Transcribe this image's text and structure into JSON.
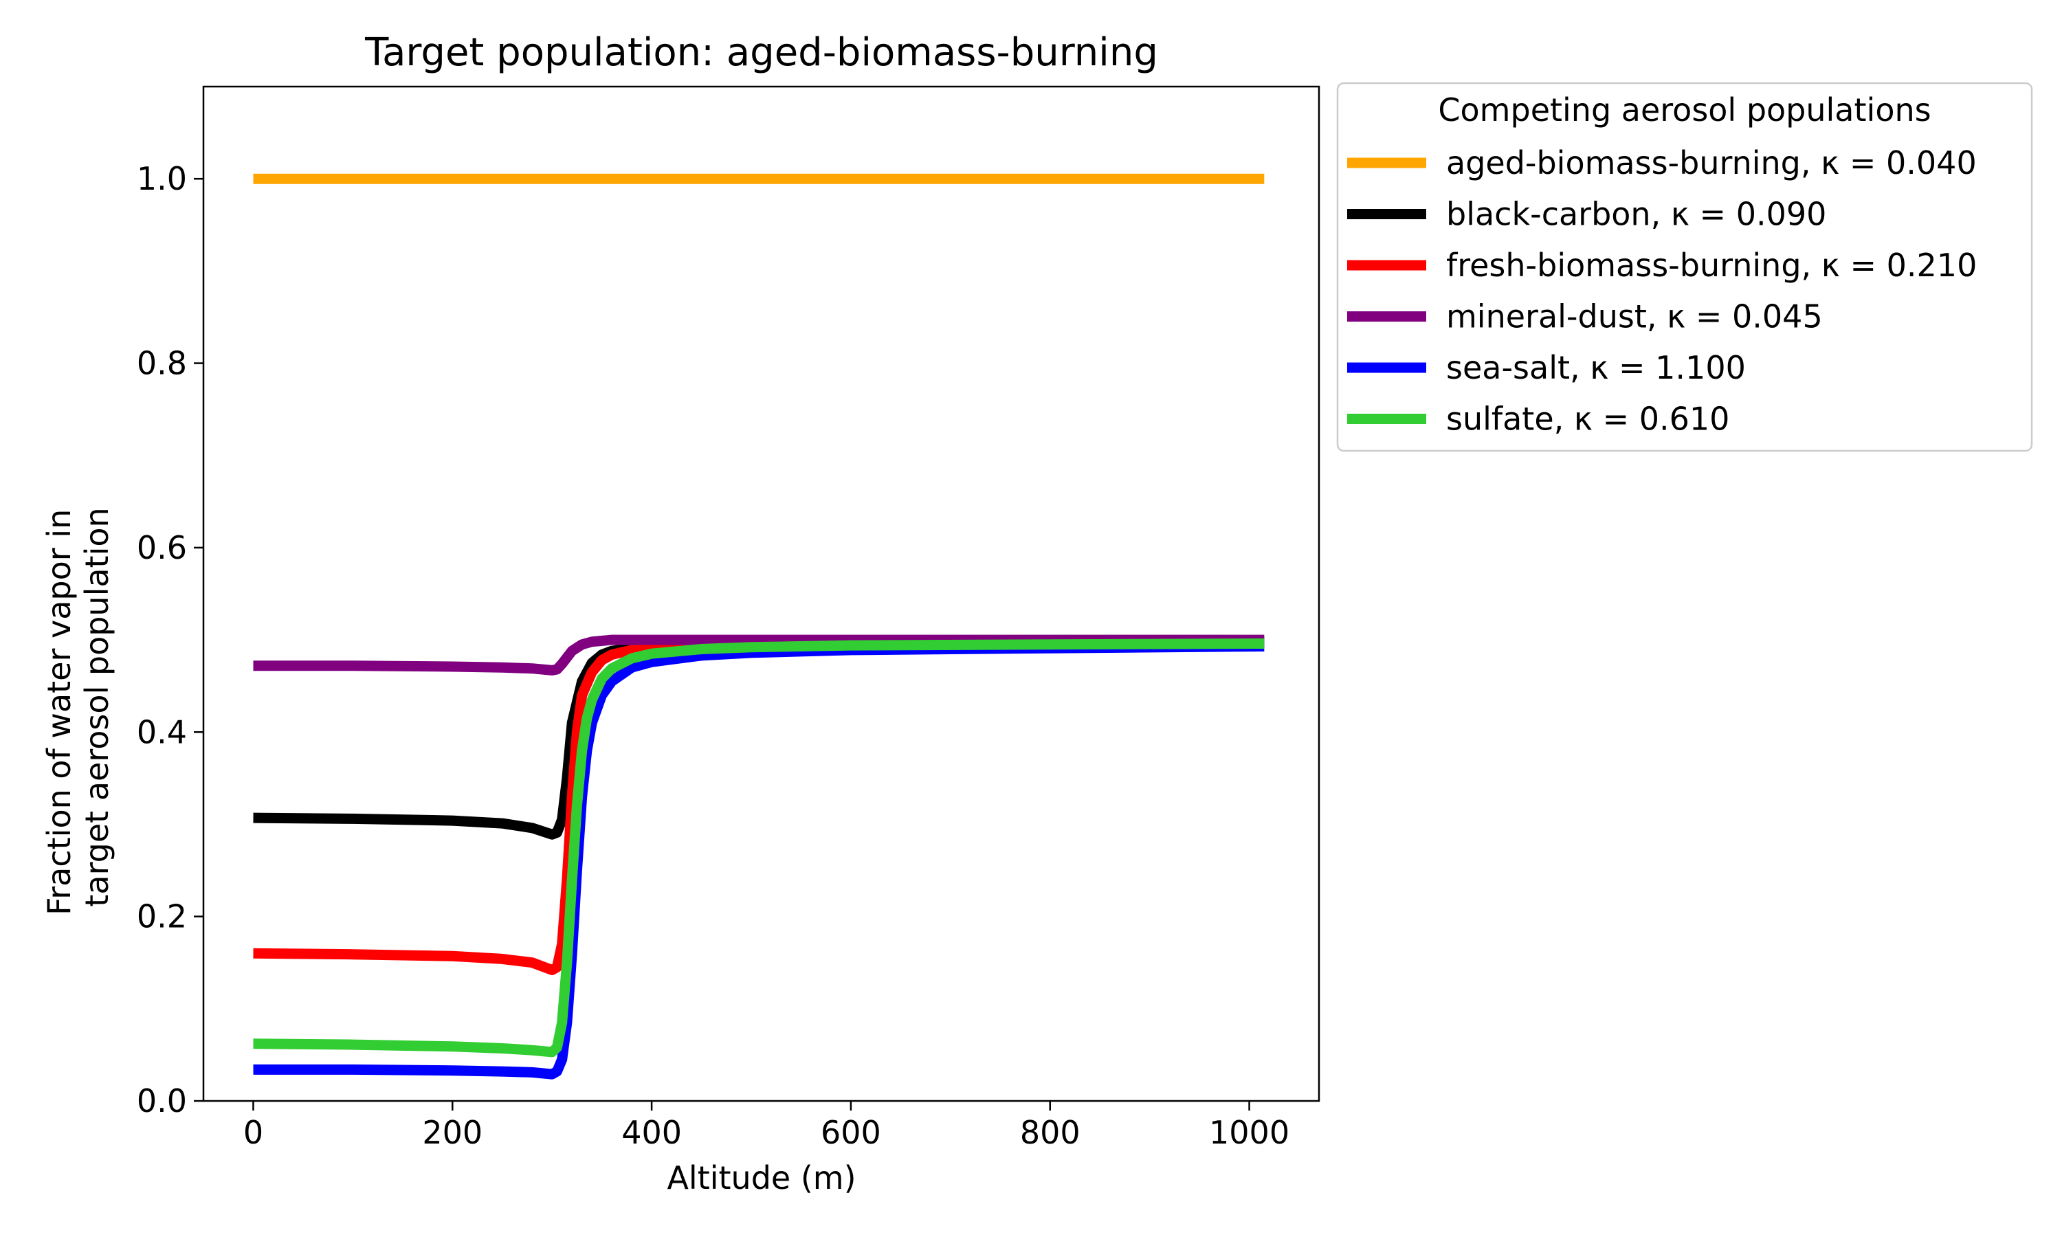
{
  "chart_data": {
    "type": "line",
    "title": "Target population: aged-biomass-burning",
    "xlabel": "Altitude (m)",
    "ylabel_lines": [
      "Fraction of water vapor in",
      "target aerosol population"
    ],
    "xlim": [
      -50,
      1070
    ],
    "ylim": [
      0,
      1.1
    ],
    "xticks": [
      0,
      200,
      400,
      600,
      800,
      1000
    ],
    "xtick_labels": [
      "0",
      "200",
      "400",
      "600",
      "800",
      "1000"
    ],
    "yticks": [
      0.0,
      0.2,
      0.4,
      0.6,
      0.8,
      1.0
    ],
    "ytick_labels": [
      "0.0",
      "0.2",
      "0.4",
      "0.6",
      "0.8",
      "1.0"
    ],
    "grid": false,
    "legend": {
      "title": "Competing aerosol populations",
      "placement": "outside-top-right"
    },
    "series": [
      {
        "name": "aged-biomass-burning",
        "kappa_label": "κ = 0.040",
        "color": "#ffa500",
        "x": [
          0,
          1015
        ],
        "y": [
          1.0,
          1.0
        ]
      },
      {
        "name": "black-carbon",
        "kappa_label": "κ = 0.090",
        "color": "#000000",
        "x": [
          0,
          100,
          200,
          250,
          280,
          300,
          305,
          310,
          315,
          320,
          330,
          340,
          350,
          360,
          380,
          400,
          450,
          500,
          600,
          800,
          1015
        ],
        "y": [
          0.307,
          0.306,
          0.304,
          0.301,
          0.296,
          0.289,
          0.291,
          0.305,
          0.35,
          0.41,
          0.455,
          0.475,
          0.484,
          0.488,
          0.491,
          0.493,
          0.495,
          0.496,
          0.497,
          0.498,
          0.498
        ]
      },
      {
        "name": "fresh-biomass-burning",
        "kappa_label": "κ = 0.210",
        "color": "#ff0000",
        "x": [
          0,
          100,
          200,
          250,
          280,
          300,
          305,
          310,
          315,
          320,
          325,
          330,
          340,
          350,
          360,
          380,
          400,
          450,
          500,
          600,
          800,
          1015
        ],
        "y": [
          0.16,
          0.159,
          0.157,
          0.154,
          0.15,
          0.142,
          0.145,
          0.17,
          0.24,
          0.33,
          0.4,
          0.44,
          0.465,
          0.478,
          0.484,
          0.489,
          0.491,
          0.494,
          0.495,
          0.496,
          0.497,
          0.497
        ]
      },
      {
        "name": "mineral-dust",
        "kappa_label": "κ = 0.045",
        "color": "#800080",
        "x": [
          0,
          100,
          200,
          250,
          280,
          300,
          305,
          310,
          320,
          330,
          340,
          360,
          400,
          500,
          1015
        ],
        "y": [
          0.472,
          0.472,
          0.471,
          0.47,
          0.469,
          0.467,
          0.468,
          0.474,
          0.488,
          0.495,
          0.498,
          0.5,
          0.5,
          0.5,
          0.5
        ]
      },
      {
        "name": "sea-salt",
        "kappa_label": "κ = 1.100",
        "color": "#0000ff",
        "x": [
          0,
          100,
          200,
          250,
          280,
          300,
          305,
          310,
          315,
          320,
          325,
          330,
          335,
          340,
          350,
          360,
          380,
          400,
          450,
          500,
          600,
          800,
          1015
        ],
        "y": [
          0.034,
          0.034,
          0.033,
          0.032,
          0.031,
          0.029,
          0.032,
          0.045,
          0.085,
          0.16,
          0.25,
          0.33,
          0.38,
          0.41,
          0.44,
          0.455,
          0.47,
          0.476,
          0.483,
          0.486,
          0.489,
          0.491,
          0.493
        ]
      },
      {
        "name": "sulfate",
        "kappa_label": "κ = 0.610",
        "color": "#32cd32",
        "x": [
          0,
          100,
          200,
          250,
          280,
          300,
          305,
          310,
          315,
          320,
          325,
          330,
          335,
          340,
          350,
          360,
          380,
          400,
          450,
          500,
          600,
          800,
          1015
        ],
        "y": [
          0.062,
          0.061,
          0.059,
          0.057,
          0.055,
          0.053,
          0.058,
          0.085,
          0.15,
          0.24,
          0.32,
          0.38,
          0.415,
          0.435,
          0.458,
          0.469,
          0.48,
          0.485,
          0.49,
          0.492,
          0.494,
          0.495,
          0.496
        ]
      }
    ]
  }
}
